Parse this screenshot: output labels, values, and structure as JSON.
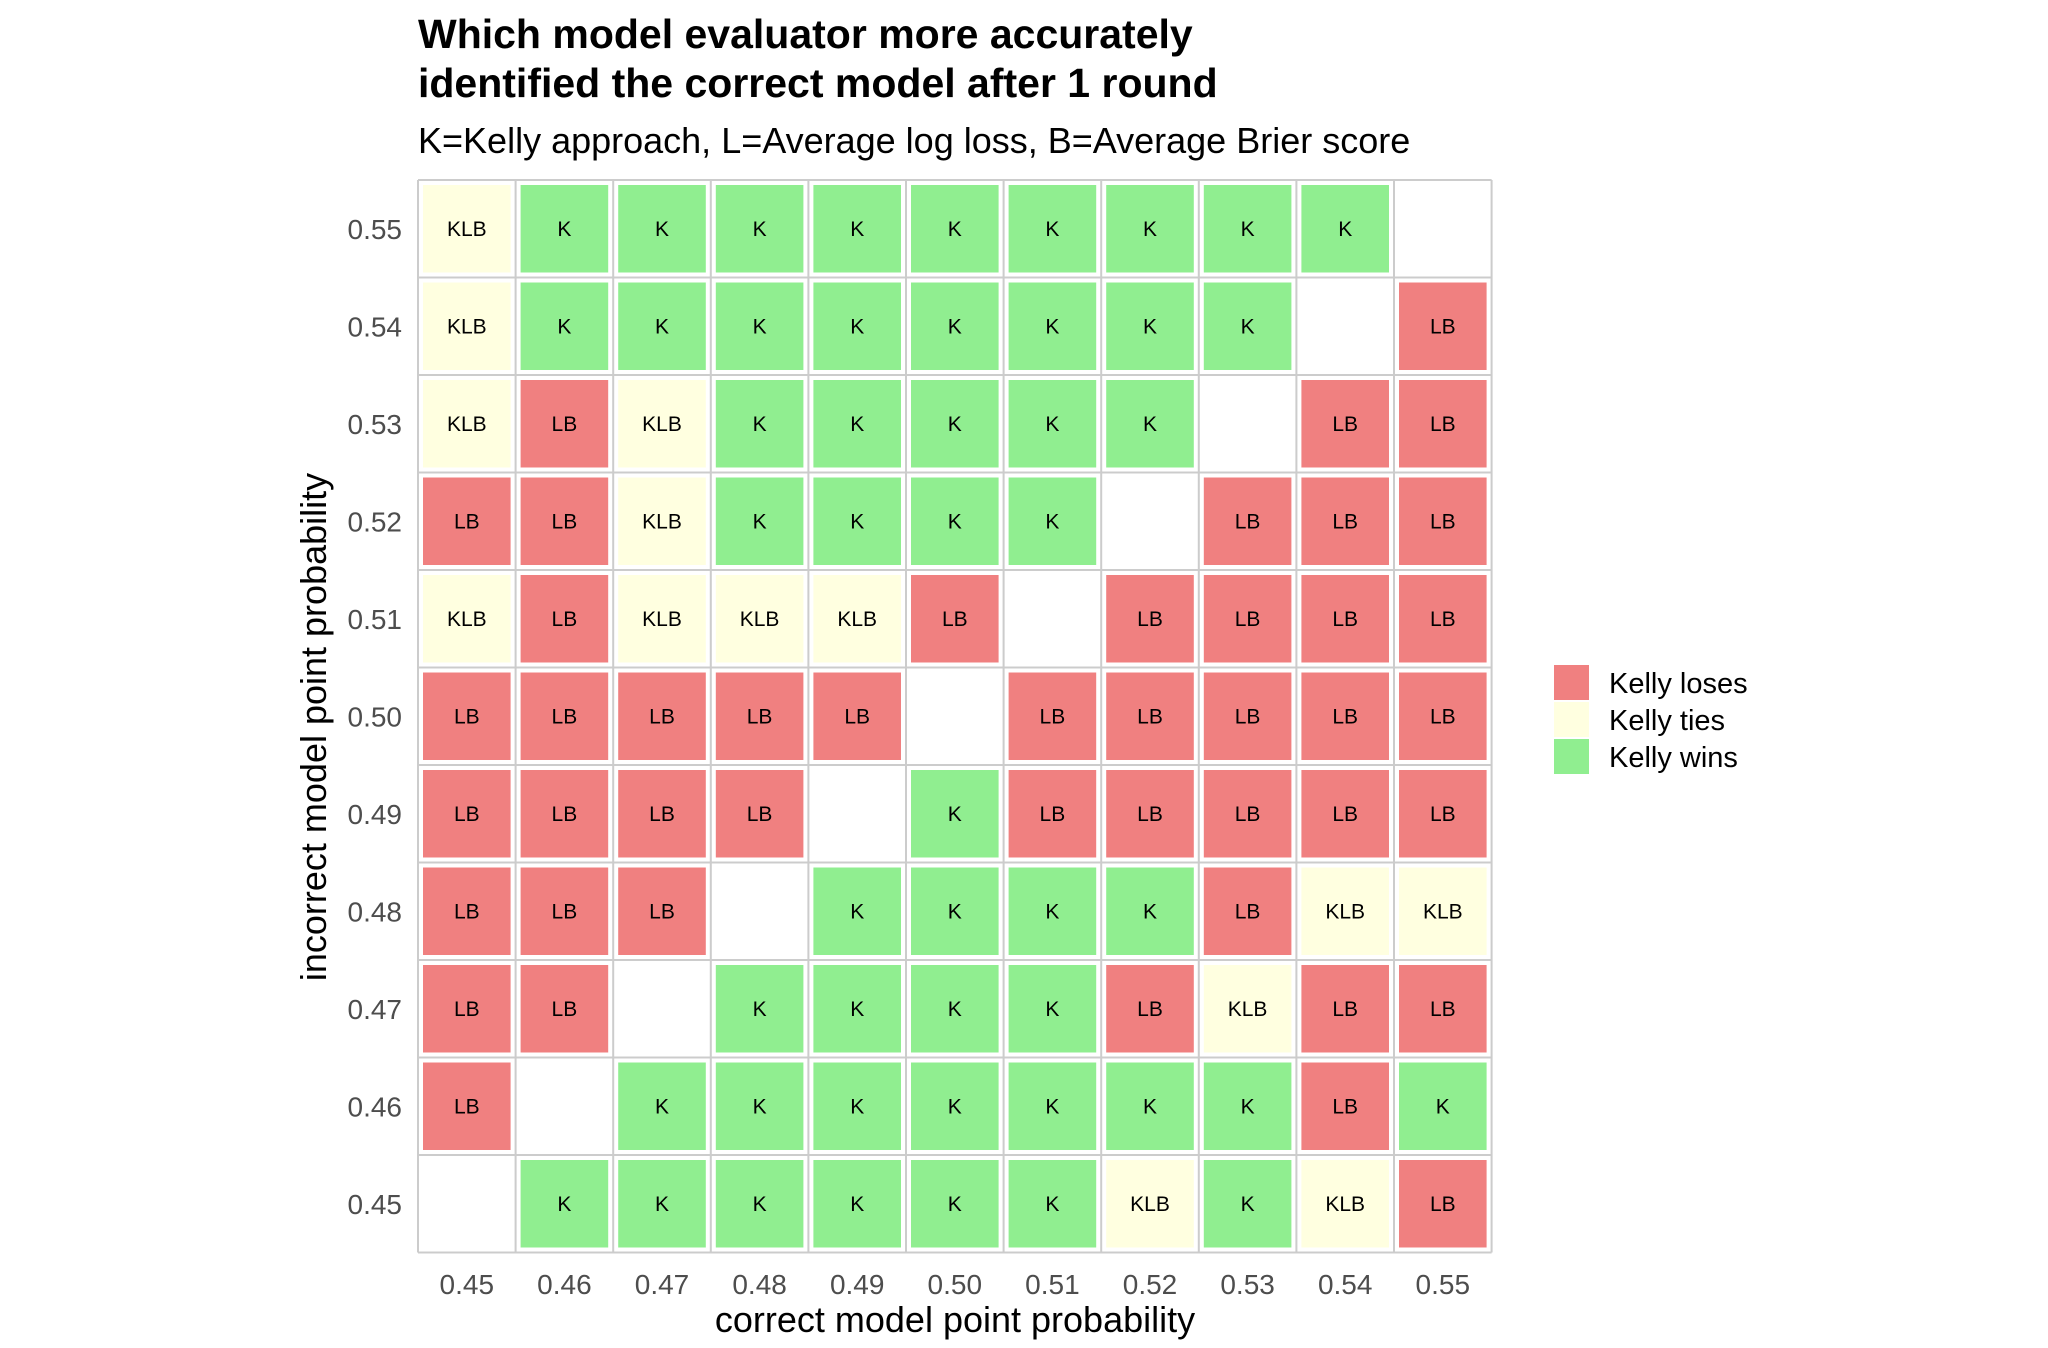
{
  "chart_data": {
    "type": "heatmap",
    "title_line1": "Which model evaluator more accurately",
    "title_line2": "identified the correct model after 1 round",
    "subtitle": "K=Kelly approach, L=Average log loss, B=Average Brier score",
    "xlabel": "correct model point probability",
    "ylabel": "incorrect model point probability",
    "x": [
      "0.45",
      "0.46",
      "0.47",
      "0.48",
      "0.49",
      "0.50",
      "0.51",
      "0.52",
      "0.53",
      "0.54",
      "0.55"
    ],
    "y": [
      "0.55",
      "0.54",
      "0.53",
      "0.52",
      "0.51",
      "0.50",
      "0.49",
      "0.48",
      "0.47",
      "0.46",
      "0.45"
    ],
    "cells": [
      [
        "KLB",
        "K",
        "K",
        "K",
        "K",
        "K",
        "K",
        "K",
        "K",
        "K",
        ""
      ],
      [
        "KLB",
        "K",
        "K",
        "K",
        "K",
        "K",
        "K",
        "K",
        "K",
        "",
        "LB"
      ],
      [
        "KLB",
        "LB",
        "KLB",
        "K",
        "K",
        "K",
        "K",
        "K",
        "",
        "LB",
        "LB"
      ],
      [
        "LB",
        "LB",
        "KLB",
        "K",
        "K",
        "K",
        "K",
        "",
        "LB",
        "LB",
        "LB"
      ],
      [
        "KLB",
        "LB",
        "KLB",
        "KLB",
        "KLB",
        "LB",
        "",
        "LB",
        "LB",
        "LB",
        "LB"
      ],
      [
        "LB",
        "LB",
        "LB",
        "LB",
        "LB",
        "",
        "LB",
        "LB",
        "LB",
        "LB",
        "LB"
      ],
      [
        "LB",
        "LB",
        "LB",
        "LB",
        "",
        "K",
        "LB",
        "LB",
        "LB",
        "LB",
        "LB"
      ],
      [
        "LB",
        "LB",
        "LB",
        "",
        "K",
        "K",
        "K",
        "K",
        "LB",
        "KLB",
        "KLB"
      ],
      [
        "LB",
        "LB",
        "",
        "K",
        "K",
        "K",
        "K",
        "LB",
        "KLB",
        "LB",
        "LB"
      ],
      [
        "LB",
        "",
        "K",
        "K",
        "K",
        "K",
        "K",
        "K",
        "K",
        "LB",
        "K"
      ],
      [
        "",
        "K",
        "K",
        "K",
        "K",
        "K",
        "K",
        "KLB",
        "K",
        "KLB",
        "LB"
      ]
    ],
    "categories": {
      "LB": "Kelly loses",
      "KLB": "Kelly ties",
      "K": "Kelly wins"
    },
    "legend": [
      {
        "label": "Kelly loses",
        "color": "#f08080"
      },
      {
        "label": "Kelly ties",
        "color": "#ffffe0"
      },
      {
        "label": "Kelly wins",
        "color": "#90ee90"
      }
    ],
    "legend_position": "right",
    "grid": true
  }
}
